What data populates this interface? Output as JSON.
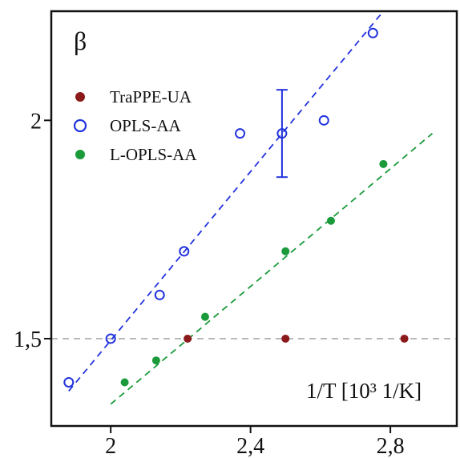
{
  "chart_data": {
    "type": "scatter",
    "ylabel": "β",
    "xlabel": "1/T [10³ 1/K]",
    "xlim": [
      1.83,
      2.99
    ],
    "ylim": [
      1.3,
      2.25
    ],
    "x_ticks": [
      2.0,
      2.4,
      2.8
    ],
    "x_tick_labels": [
      "2",
      "2,4",
      "2,8"
    ],
    "y_ticks": [
      1.5,
      2.0
    ],
    "y_tick_labels": [
      "1,5",
      "2"
    ],
    "reference_line": {
      "y": 1.5,
      "style": "dashed",
      "color": "#aaaaaa"
    },
    "legend_position": "upper-left",
    "series": [
      {
        "name": "TraPPE-UA",
        "marker": "filled-circle",
        "color": "#8b1a1a",
        "x": [
          2.22,
          2.5,
          2.84
        ],
        "y": [
          1.5,
          1.5,
          1.5
        ]
      },
      {
        "name": "OPLS-AA",
        "marker": "open-circle",
        "color": "#2233dd",
        "x": [
          1.88,
          2.0,
          2.14,
          2.21,
          2.37,
          2.49,
          2.61,
          2.75
        ],
        "y": [
          1.4,
          1.5,
          1.6,
          1.7,
          1.97,
          1.97,
          2.0,
          2.2
        ],
        "error_bars": [
          {
            "x": 2.49,
            "y": 1.97,
            "low": 1.87,
            "high": 2.07
          }
        ],
        "fit_line": {
          "x": [
            1.88,
            2.78
          ],
          "y": [
            1.38,
            2.25
          ],
          "style": "dashed"
        }
      },
      {
        "name": "L-OPLS-AA",
        "marker": "filled-circle",
        "color": "#1a9a3a",
        "x": [
          2.04,
          2.13,
          2.27,
          2.5,
          2.63,
          2.78
        ],
        "y": [
          1.4,
          1.45,
          1.55,
          1.7,
          1.77,
          1.9
        ],
        "fit_line": {
          "x": [
            2.0,
            2.92
          ],
          "y": [
            1.35,
            1.97
          ],
          "style": "dashed"
        }
      }
    ]
  }
}
